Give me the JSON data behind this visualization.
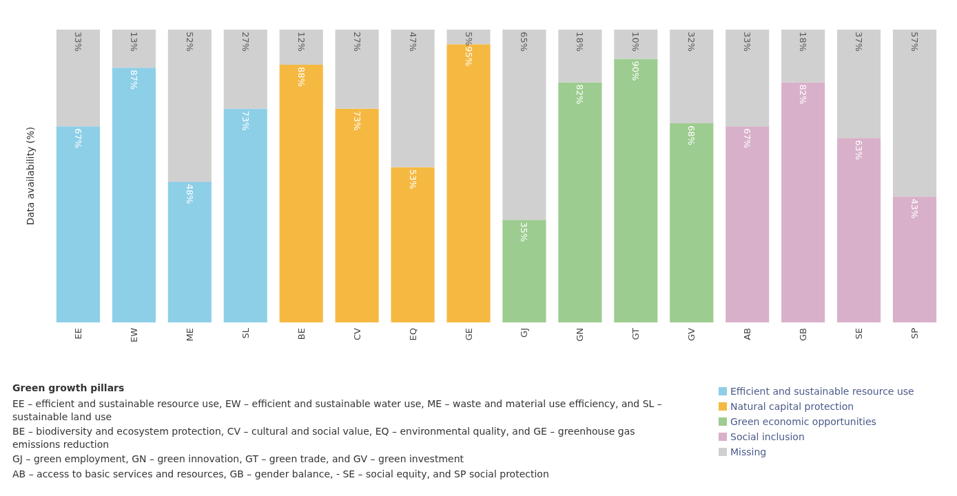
{
  "chart_data": {
    "type": "bar",
    "stacked": true,
    "ylabel": "Data availability (%)",
    "ylim": [
      0,
      100
    ],
    "tick_labels": "x",
    "grid": false,
    "legend": "bottom right",
    "categories": [
      "EE",
      "EW",
      "ME",
      "SL",
      "BE",
      "CV",
      "EQ",
      "GE",
      "GJ",
      "GN",
      "GT",
      "GV",
      "AB",
      "GB",
      "SE",
      "SP"
    ],
    "series": [
      {
        "name": "Efficient and sustainable resource use",
        "color": "#8ecfe8",
        "values": [
          67,
          87,
          48,
          73,
          null,
          null,
          null,
          null,
          null,
          null,
          null,
          null,
          null,
          null,
          null,
          null
        ],
        "value_labels": [
          "67%",
          "87%",
          "48%",
          "73%",
          null,
          null,
          null,
          null,
          null,
          null,
          null,
          null,
          null,
          null,
          null,
          null
        ]
      },
      {
        "name": "Natural capital protection",
        "color": "#f5b942",
        "values": [
          null,
          null,
          null,
          null,
          88,
          73,
          53,
          95,
          null,
          null,
          null,
          null,
          null,
          null,
          null,
          null
        ],
        "value_labels": [
          null,
          null,
          null,
          null,
          "88%",
          "73%",
          "53%",
          "95%",
          null,
          null,
          null,
          null,
          null,
          null,
          null,
          null
        ]
      },
      {
        "name": "Green economic opportunities",
        "color": "#9ccc8f",
        "values": [
          null,
          null,
          null,
          null,
          null,
          null,
          null,
          null,
          35,
          82,
          90,
          68,
          null,
          null,
          null,
          null
        ],
        "value_labels": [
          null,
          null,
          null,
          null,
          null,
          null,
          null,
          null,
          "35%",
          "82%",
          "90%",
          "68%",
          null,
          null,
          null,
          null
        ]
      },
      {
        "name": "Social inclusion",
        "color": "#d9b0c9",
        "values": [
          null,
          null,
          null,
          null,
          null,
          null,
          null,
          null,
          null,
          null,
          null,
          null,
          67,
          82,
          63,
          43
        ],
        "value_labels": [
          null,
          null,
          null,
          null,
          null,
          null,
          null,
          null,
          null,
          null,
          null,
          null,
          "67%",
          "82%",
          "63%",
          "43%"
        ]
      },
      {
        "name": "Missing",
        "color": "#d0d0d0",
        "values": [
          33,
          13,
          52,
          27,
          12,
          27,
          47,
          5,
          65,
          18,
          10,
          32,
          33,
          18,
          37,
          57
        ],
        "value_labels": [
          "33%",
          "13%",
          "52%",
          "27%",
          "12%",
          "27%",
          "47%",
          "5%",
          "65%",
          "18%",
          "10%",
          "32%",
          "33%",
          "18%",
          "37%",
          "57%"
        ]
      }
    ],
    "annotations": [
      "Green growth pillars",
      "EE – efficient and sustainable resource use, EW – efficient and sustainable water use, ME – waste and material use efficiency, and SL – sustainable land use",
      "BE – biodiversity and ecosystem protection, CV – cultural and social value, EQ – environmental quality, and GE – greenhouse gas emissions reduction",
      "GJ – green employment, GN – green innovation, GT – green trade, and GV – green investment",
      "AB – access to basic services and resources, GB – gender balance, - SE – social equity, and SP social protection"
    ]
  }
}
